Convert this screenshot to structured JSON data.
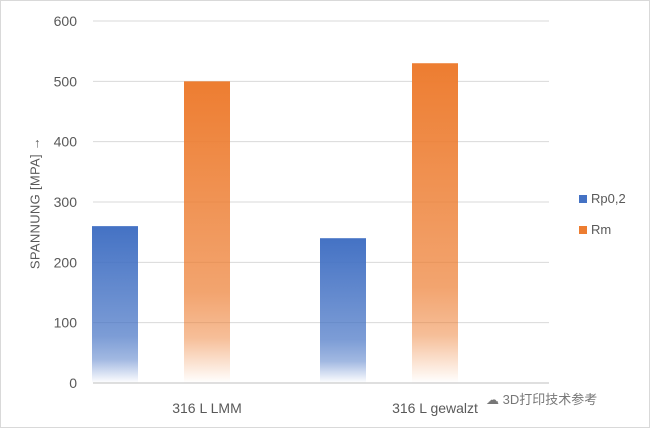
{
  "chart_data": {
    "type": "bar",
    "categories": [
      "316 L LMM",
      "316 L gewalzt"
    ],
    "series": [
      {
        "name": "Rp0,2",
        "values": [
          260,
          240
        ],
        "color": "#4472C4"
      },
      {
        "name": "Rm",
        "values": [
          500,
          530
        ],
        "color": "#ED7D31"
      }
    ],
    "ylabel": "SPANNUNG [MPA] →",
    "xlabel": "",
    "ylim": [
      0,
      600
    ],
    "yticks": [
      0,
      100,
      200,
      300,
      400,
      500,
      600
    ],
    "grid": true,
    "legend_position": "right",
    "fill": "vertical gradient fading to white at bottom"
  },
  "watermark": {
    "icon": "wechat-icon",
    "text": "3D打印技术参考"
  }
}
